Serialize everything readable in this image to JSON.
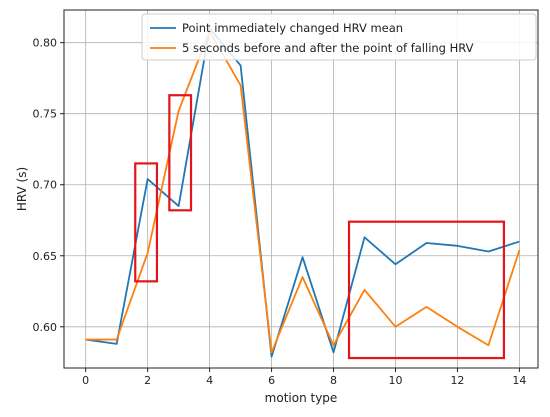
{
  "chart_data": {
    "type": "line",
    "xlabel": "motion type",
    "ylabel": "HRV (s)",
    "x": [
      0,
      1,
      2,
      3,
      4,
      5,
      6,
      7,
      8,
      9,
      10,
      11,
      12,
      13,
      14
    ],
    "xlim": [
      -0.7,
      14.6
    ],
    "ylim": [
      0.571,
      0.823
    ],
    "xticks": [
      "0",
      "2",
      "4",
      "6",
      "8",
      "10",
      "12",
      "14"
    ],
    "yticks": [
      "0.60",
      "0.65",
      "0.70",
      "0.75",
      "0.80"
    ],
    "grid": true,
    "legend_position": "top-right",
    "series": [
      {
        "name": "Point immediately changed HRV mean",
        "color": "#1f77b4",
        "values": [
          0.591,
          0.588,
          0.704,
          0.685,
          0.81,
          0.784,
          0.579,
          0.649,
          0.582,
          0.663,
          0.644,
          0.659,
          0.657,
          0.653,
          0.66
        ]
      },
      {
        "name": "5 seconds before and after the point of falling HRV",
        "color": "#ff7f0e",
        "values": [
          0.591,
          0.591,
          0.652,
          0.752,
          0.808,
          0.77,
          0.582,
          0.635,
          0.587,
          0.626,
          0.6,
          0.614,
          0.6,
          0.587,
          0.654
        ]
      }
    ],
    "highlight_boxes": [
      {
        "x0": 1.6,
        "x1": 2.3,
        "y0": 0.632,
        "y1": 0.715
      },
      {
        "x0": 2.7,
        "x1": 3.4,
        "y0": 0.682,
        "y1": 0.763
      },
      {
        "x0": 8.5,
        "x1": 13.5,
        "y0": 0.578,
        "y1": 0.674
      }
    ],
    "highlight_color": "#e3151a"
  }
}
